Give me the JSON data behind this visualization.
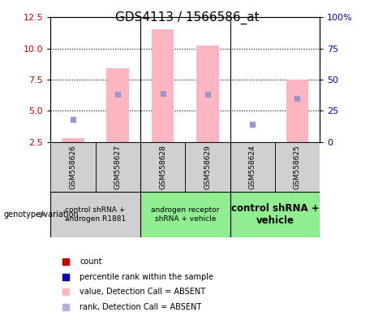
{
  "title": "GDS4113 / 1566586_at",
  "samples": [
    "GSM558626",
    "GSM558627",
    "GSM558628",
    "GSM558629",
    "GSM558624",
    "GSM558625"
  ],
  "pink_bar_values": [
    2.8,
    8.4,
    11.5,
    10.2,
    2.4,
    7.5
  ],
  "blue_square_values_left": [
    4.3,
    6.3,
    6.4,
    6.3,
    3.9,
    6.0
  ],
  "ylim_left": [
    2.5,
    12.5
  ],
  "ylim_right": [
    0,
    100
  ],
  "yticks_left": [
    2.5,
    5.0,
    7.5,
    10.0,
    12.5
  ],
  "yticks_right": [
    0,
    25,
    50,
    75,
    100
  ],
  "group_colors": [
    "#d0d0d0",
    "#90ee90",
    "#90ee90"
  ],
  "group_labels": [
    "control shRNA +\nandrogen R1881",
    "androgen receptor\nshRNA + vehicle",
    "control shRNA +\nvehicle"
  ],
  "group_ranges": [
    [
      0,
      2
    ],
    [
      2,
      4
    ],
    [
      4,
      6
    ]
  ],
  "pink_bar_color": "#ffb6c1",
  "blue_square_color": "#9898cc",
  "bar_width": 0.5,
  "left_axis_color": "#cc0000",
  "right_axis_color": "#0000bb",
  "legend_colors": [
    "#cc0000",
    "#0000bb",
    "#ffb6c1",
    "#b0b0e0"
  ],
  "legend_labels": [
    "count",
    "percentile rank within the sample",
    "value, Detection Call = ABSENT",
    "rank, Detection Call = ABSENT"
  ]
}
